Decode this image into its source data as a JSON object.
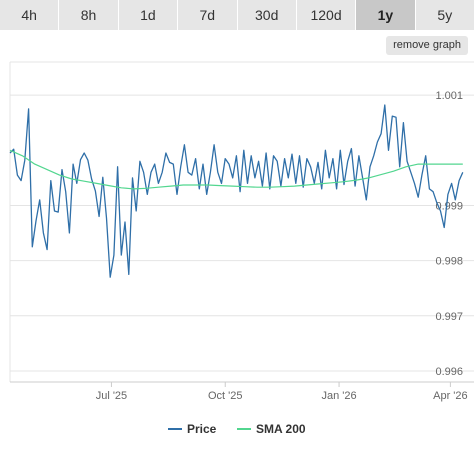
{
  "tabs": [
    {
      "label": "4h",
      "active": false
    },
    {
      "label": "8h",
      "active": false
    },
    {
      "label": "1d",
      "active": false
    },
    {
      "label": "7d",
      "active": false
    },
    {
      "label": "30d",
      "active": false
    },
    {
      "label": "120d",
      "active": false
    },
    {
      "label": "1y",
      "active": true
    },
    {
      "label": "5y",
      "active": false
    }
  ],
  "remove_graph_label": "remove graph",
  "colors": {
    "price": "#2f6fa8",
    "sma": "#52d68f",
    "grid": "#e4e4e4"
  },
  "chart_data": {
    "type": "line",
    "title": "",
    "xlabel": "",
    "ylabel": "",
    "xlim": [
      "2025-04-10",
      "2026-04-12"
    ],
    "ylim": [
      0.9958,
      1.0016
    ],
    "y_ticks": [
      {
        "value": 0.996,
        "label": "0.996"
      },
      {
        "value": 0.997,
        "label": "0.997"
      },
      {
        "value": 0.998,
        "label": "0.998"
      },
      {
        "value": 0.999,
        "label": "0.999"
      },
      {
        "value": 1.001,
        "label": "1.001"
      }
    ],
    "x_ticks": [
      {
        "value": "2025-07-01",
        "label": "Jul '25"
      },
      {
        "value": "2025-10-01",
        "label": "Oct '25"
      },
      {
        "value": "2026-01-01",
        "label": "Jan '26"
      },
      {
        "value": "2026-04-01",
        "label": "Apr '26"
      }
    ],
    "grid": true,
    "legend_position": "bottom-center",
    "series": [
      {
        "name": "Price",
        "x": [
          "2025-04-10",
          "2025-04-13",
          "2025-04-16",
          "2025-04-19",
          "2025-04-22",
          "2025-04-25",
          "2025-04-28",
          "2025-05-01",
          "2025-05-04",
          "2025-05-07",
          "2025-05-10",
          "2025-05-13",
          "2025-05-16",
          "2025-05-19",
          "2025-05-22",
          "2025-05-25",
          "2025-05-28",
          "2025-05-31",
          "2025-06-03",
          "2025-06-06",
          "2025-06-09",
          "2025-06-12",
          "2025-06-15",
          "2025-06-18",
          "2025-06-21",
          "2025-06-24",
          "2025-06-27",
          "2025-06-30",
          "2025-07-03",
          "2025-07-06",
          "2025-07-09",
          "2025-07-12",
          "2025-07-15",
          "2025-07-18",
          "2025-07-21",
          "2025-07-24",
          "2025-07-27",
          "2025-07-30",
          "2025-08-02",
          "2025-08-05",
          "2025-08-08",
          "2025-08-11",
          "2025-08-14",
          "2025-08-17",
          "2025-08-20",
          "2025-08-23",
          "2025-08-26",
          "2025-08-29",
          "2025-09-01",
          "2025-09-04",
          "2025-09-07",
          "2025-09-10",
          "2025-09-13",
          "2025-09-16",
          "2025-09-19",
          "2025-09-22",
          "2025-09-25",
          "2025-09-28",
          "2025-10-01",
          "2025-10-04",
          "2025-10-07",
          "2025-10-10",
          "2025-10-13",
          "2025-10-16",
          "2025-10-19",
          "2025-10-22",
          "2025-10-25",
          "2025-10-28",
          "2025-10-31",
          "2025-11-03",
          "2025-11-06",
          "2025-11-09",
          "2025-11-12",
          "2025-11-15",
          "2025-11-18",
          "2025-11-21",
          "2025-11-24",
          "2025-11-27",
          "2025-11-30",
          "2025-12-03",
          "2025-12-06",
          "2025-12-09",
          "2025-12-12",
          "2025-12-15",
          "2025-12-18",
          "2025-12-21",
          "2025-12-24",
          "2025-12-27",
          "2025-12-30",
          "2026-01-02",
          "2026-01-05",
          "2026-01-08",
          "2026-01-11",
          "2026-01-14",
          "2026-01-17",
          "2026-01-20",
          "2026-01-23",
          "2026-01-26",
          "2026-01-29",
          "2026-02-01",
          "2026-02-04",
          "2026-02-07",
          "2026-02-10",
          "2026-02-13",
          "2026-02-16",
          "2026-02-19",
          "2026-02-22",
          "2026-02-25",
          "2026-02-28",
          "2026-03-03",
          "2026-03-06",
          "2026-03-09",
          "2026-03-12",
          "2026-03-15",
          "2026-03-18",
          "2026-03-21",
          "2026-03-24",
          "2026-03-27",
          "2026-03-30",
          "2026-04-02",
          "2026-04-05",
          "2026-04-08",
          "2026-04-11"
        ],
        "values": [
          0.99995,
          1.00002,
          0.99955,
          0.99945,
          0.99982,
          1.00075,
          0.99825,
          0.99872,
          0.9991,
          0.9985,
          0.9982,
          0.99945,
          0.9989,
          0.99888,
          0.99965,
          0.99925,
          0.9985,
          0.99975,
          0.9994,
          0.99983,
          0.99995,
          0.99982,
          0.99948,
          0.99926,
          0.9988,
          0.99951,
          0.99877,
          0.9977,
          0.9981,
          0.9997,
          0.9981,
          0.9987,
          0.99775,
          0.9995,
          0.9989,
          0.9998,
          0.9996,
          0.9992,
          0.9996,
          0.99975,
          0.9994,
          0.9996,
          0.99995,
          0.99978,
          0.99975,
          0.9992,
          0.9997,
          1.0001,
          0.9996,
          0.99955,
          0.99985,
          0.9993,
          0.99975,
          0.9992,
          0.9996,
          1.0001,
          0.9996,
          0.9994,
          0.99985,
          0.99975,
          0.9995,
          0.9999,
          0.99925,
          1.0,
          0.9994,
          0.9999,
          0.9995,
          0.9998,
          0.99935,
          0.99995,
          0.9993,
          0.9999,
          0.9998,
          0.99935,
          0.99985,
          0.9995,
          0.99993,
          0.9994,
          0.9999,
          0.99933,
          0.99985,
          0.9997,
          0.9994,
          0.99978,
          0.9993,
          1.0,
          0.9995,
          0.99985,
          0.9993,
          1.0,
          0.99938,
          0.9998,
          1.00003,
          0.99935,
          0.9999,
          0.9995,
          0.9991,
          0.9997,
          0.9999,
          1.00015,
          1.0003,
          1.00082,
          1.0,
          1.00062,
          1.0006,
          0.9997,
          1.0005,
          0.9998,
          0.9996,
          0.9994,
          0.99915,
          0.99955,
          0.9999,
          0.9993,
          0.99925,
          0.99905,
          0.9989,
          0.9986,
          0.9992,
          0.9994,
          0.9991,
          0.99945,
          0.9996
        ]
      },
      {
        "name": "SMA 200",
        "x": [
          "2025-04-10",
          "2025-04-20",
          "2025-04-30",
          "2025-05-10",
          "2025-05-20",
          "2025-05-30",
          "2025-06-09",
          "2025-06-19",
          "2025-06-29",
          "2025-07-09",
          "2025-07-19",
          "2025-07-29",
          "2025-08-08",
          "2025-08-18",
          "2025-08-28",
          "2025-09-07",
          "2025-09-17",
          "2025-09-27",
          "2025-10-07",
          "2025-10-17",
          "2025-10-27",
          "2025-11-06",
          "2025-11-16",
          "2025-11-26",
          "2025-12-06",
          "2025-12-16",
          "2025-12-26",
          "2026-01-05",
          "2026-01-15",
          "2026-01-25",
          "2026-02-04",
          "2026-02-14",
          "2026-02-24",
          "2026-03-06",
          "2026-03-16",
          "2026-03-26",
          "2026-04-05",
          "2026-04-11"
        ],
        "values": [
          1.0,
          0.9999,
          0.99975,
          0.99965,
          0.99955,
          0.99948,
          0.99944,
          0.9994,
          0.99936,
          0.99932,
          0.9993,
          0.99931,
          0.99933,
          0.99935,
          0.99937,
          0.99937,
          0.99937,
          0.99936,
          0.99935,
          0.99934,
          0.99933,
          0.99933,
          0.99934,
          0.99935,
          0.99937,
          0.99939,
          0.99941,
          0.99943,
          0.99946,
          0.9995,
          0.99956,
          0.99962,
          0.9997,
          0.99975,
          0.99975,
          0.99975,
          0.99975,
          0.99975
        ]
      }
    ]
  }
}
